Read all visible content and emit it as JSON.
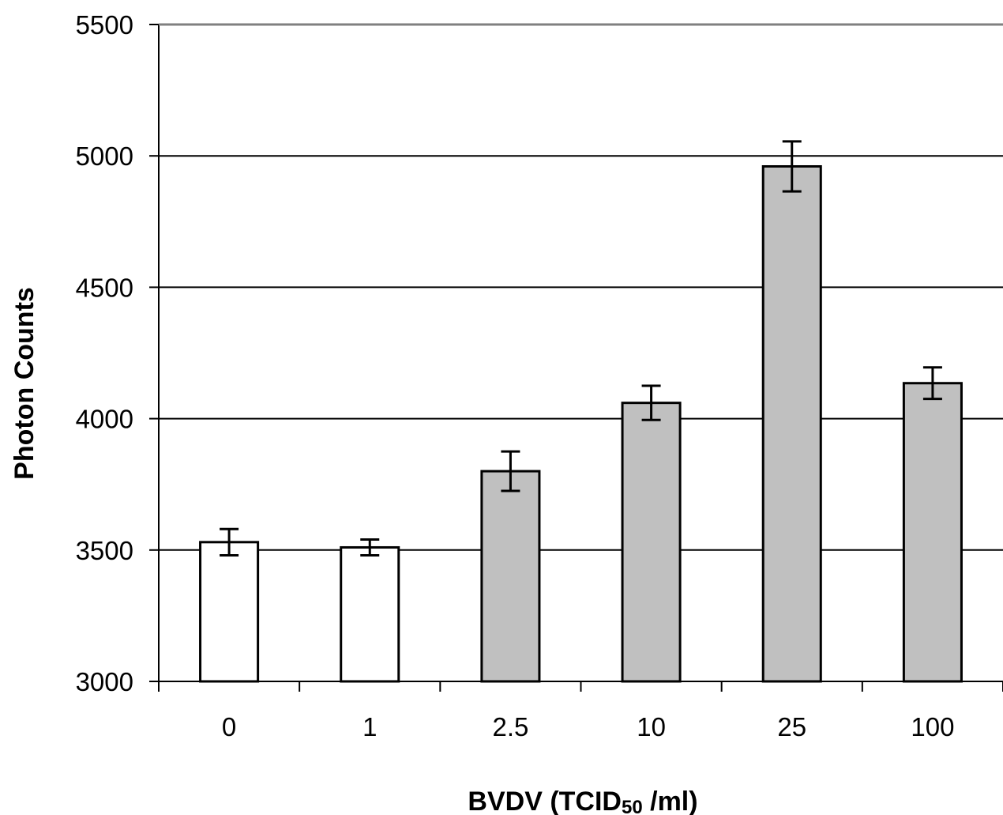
{
  "chart_data": {
    "type": "bar",
    "categories": [
      "0",
      "1",
      "2.5",
      "10",
      "25",
      "100"
    ],
    "values": [
      3530,
      3510,
      3800,
      4060,
      4960,
      4135
    ],
    "errors": [
      50,
      30,
      75,
      65,
      95,
      60
    ],
    "bar_colors": [
      "#ffffff",
      "#ffffff",
      "#c0c0c0",
      "#c0c0c0",
      "#c0c0c0",
      "#c0c0c0"
    ],
    "ylabel": "Photon Counts",
    "xlabel": {
      "main": "BVDV (TCID",
      "subscript": "50",
      "tail": " /ml)"
    },
    "ylim": [
      3000,
      5500
    ],
    "yticks": [
      "3000",
      "3500",
      "4000",
      "4500",
      "5000",
      "5500"
    ],
    "grid": true,
    "legend": "none"
  }
}
